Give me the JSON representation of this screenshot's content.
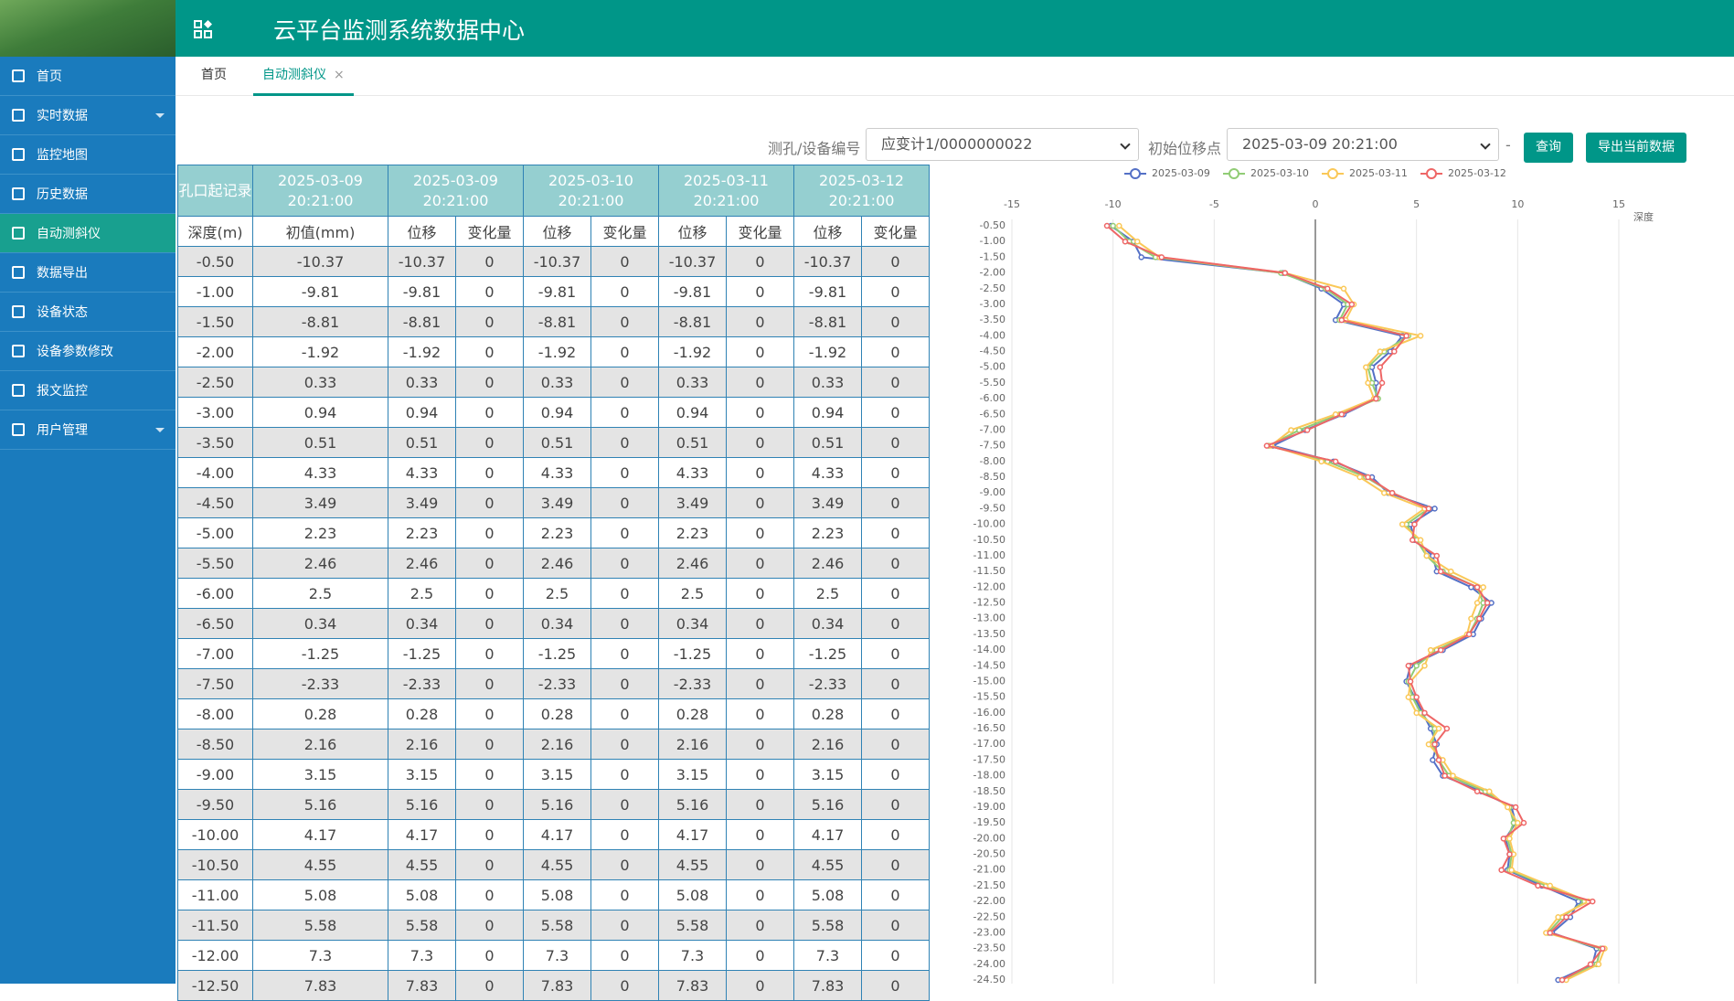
{
  "header": {
    "title": "云平台监测系统数据中心"
  },
  "sidebar": {
    "items": [
      "首页",
      "实时数据",
      "监控地图",
      "历史数据",
      "自动测斜仪",
      "数据导出",
      "设备状态",
      "设备参数修改",
      "报文监控",
      "用户管理"
    ]
  },
  "tabs": {
    "items": [
      "首页",
      "自动测斜仪"
    ]
  },
  "filters": {
    "device_label": "测孔/设备编号",
    "device_value": "应变计1/0000000022",
    "start_label": "初始位移点",
    "start_value": "2025-03-09 20:21:00",
    "dash": "-",
    "query_button": "查询",
    "export_button": "导出当前数据"
  },
  "table": {
    "header_top": [
      "孔口起记录",
      "2025-03-09 20:21:00",
      "2025-03-09 20:21:00",
      "2025-03-10 20:21:00",
      "2025-03-11 20:21:00",
      "2025-03-12 20:21:00"
    ],
    "header_sub": [
      "深度(m)",
      "初值(mm)",
      "位移",
      "变化量",
      "位移",
      "变化量",
      "位移",
      "变化量",
      "位移",
      "变化量"
    ],
    "rows": [
      [
        "-0.50",
        "-10.37",
        "-10.37",
        "0",
        "-10.37",
        "0",
        "-10.37",
        "0",
        "-10.37",
        "0"
      ],
      [
        "-1.00",
        "-9.81",
        "-9.81",
        "0",
        "-9.81",
        "0",
        "-9.81",
        "0",
        "-9.81",
        "0"
      ],
      [
        "-1.50",
        "-8.81",
        "-8.81",
        "0",
        "-8.81",
        "0",
        "-8.81",
        "0",
        "-8.81",
        "0"
      ],
      [
        "-2.00",
        "-1.92",
        "-1.92",
        "0",
        "-1.92",
        "0",
        "-1.92",
        "0",
        "-1.92",
        "0"
      ],
      [
        "-2.50",
        "0.33",
        "0.33",
        "0",
        "0.33",
        "0",
        "0.33",
        "0",
        "0.33",
        "0"
      ],
      [
        "-3.00",
        "0.94",
        "0.94",
        "0",
        "0.94",
        "0",
        "0.94",
        "0",
        "0.94",
        "0"
      ],
      [
        "-3.50",
        "0.51",
        "0.51",
        "0",
        "0.51",
        "0",
        "0.51",
        "0",
        "0.51",
        "0"
      ],
      [
        "-4.00",
        "4.33",
        "4.33",
        "0",
        "4.33",
        "0",
        "4.33",
        "0",
        "4.33",
        "0"
      ],
      [
        "-4.50",
        "3.49",
        "3.49",
        "0",
        "3.49",
        "0",
        "3.49",
        "0",
        "3.49",
        "0"
      ],
      [
        "-5.00",
        "2.23",
        "2.23",
        "0",
        "2.23",
        "0",
        "2.23",
        "0",
        "2.23",
        "0"
      ],
      [
        "-5.50",
        "2.46",
        "2.46",
        "0",
        "2.46",
        "0",
        "2.46",
        "0",
        "2.46",
        "0"
      ],
      [
        "-6.00",
        "2.5",
        "2.5",
        "0",
        "2.5",
        "0",
        "2.5",
        "0",
        "2.5",
        "0"
      ],
      [
        "-6.50",
        "0.34",
        "0.34",
        "0",
        "0.34",
        "0",
        "0.34",
        "0",
        "0.34",
        "0"
      ],
      [
        "-7.00",
        "-1.25",
        "-1.25",
        "0",
        "-1.25",
        "0",
        "-1.25",
        "0",
        "-1.25",
        "0"
      ],
      [
        "-7.50",
        "-2.33",
        "-2.33",
        "0",
        "-2.33",
        "0",
        "-2.33",
        "0",
        "-2.33",
        "0"
      ],
      [
        "-8.00",
        "0.28",
        "0.28",
        "0",
        "0.28",
        "0",
        "0.28",
        "0",
        "0.28",
        "0"
      ],
      [
        "-8.50",
        "2.16",
        "2.16",
        "0",
        "2.16",
        "0",
        "2.16",
        "0",
        "2.16",
        "0"
      ],
      [
        "-9.00",
        "3.15",
        "3.15",
        "0",
        "3.15",
        "0",
        "3.15",
        "0",
        "3.15",
        "0"
      ],
      [
        "-9.50",
        "5.16",
        "5.16",
        "0",
        "5.16",
        "0",
        "5.16",
        "0",
        "5.16",
        "0"
      ],
      [
        "-10.00",
        "4.17",
        "4.17",
        "0",
        "4.17",
        "0",
        "4.17",
        "0",
        "4.17",
        "0"
      ],
      [
        "-10.50",
        "4.55",
        "4.55",
        "0",
        "4.55",
        "0",
        "4.55",
        "0",
        "4.55",
        "0"
      ],
      [
        "-11.00",
        "5.08",
        "5.08",
        "0",
        "5.08",
        "0",
        "5.08",
        "0",
        "5.08",
        "0"
      ],
      [
        "-11.50",
        "5.58",
        "5.58",
        "0",
        "5.58",
        "0",
        "5.58",
        "0",
        "5.58",
        "0"
      ],
      [
        "-12.00",
        "7.3",
        "7.3",
        "0",
        "7.3",
        "0",
        "7.3",
        "0",
        "7.3",
        "0"
      ],
      [
        "-12.50",
        "7.83",
        "7.83",
        "0",
        "7.83",
        "0",
        "7.83",
        "0",
        "7.83",
        "0"
      ]
    ]
  },
  "chart_data": {
    "type": "line",
    "y_label": "深度",
    "categories": [
      "-0.50",
      "-1.00",
      "-1.50",
      "-2.00",
      "-2.50",
      "-3.00",
      "-3.50",
      "-4.00",
      "-4.50",
      "-5.00",
      "-5.50",
      "-6.00",
      "-6.50",
      "-7.00",
      "-7.50",
      "-8.00",
      "-8.50",
      "-9.00",
      "-9.50",
      "-10.00",
      "-10.50",
      "-11.00",
      "-11.50",
      "-12.00",
      "-12.50",
      "-13.00",
      "-13.50",
      "-14.00",
      "-14.50",
      "-15.00",
      "-15.50",
      "-16.00",
      "-16.50",
      "-17.00",
      "-17.50",
      "-18.00",
      "-18.50",
      "-19.00",
      "-19.50",
      "-20.00",
      "-20.50",
      "-21.00",
      "-21.50",
      "-22.00",
      "-22.50",
      "-23.00",
      "-23.50",
      "-24.00",
      "-24.50"
    ],
    "xlim": [
      -15,
      15
    ],
    "xticks": [
      -15,
      -10,
      -5,
      0,
      5,
      10,
      15
    ],
    "grid": true,
    "legend": "top",
    "series": [
      {
        "name": "2025-03-09",
        "color": "#5470c6",
        "values": [
          -10.1,
          -9.0,
          -8.6,
          -1.6,
          0.3,
          1.4,
          1.0,
          4.3,
          3.7,
          2.8,
          3.0,
          3.0,
          1.4,
          -0.5,
          -2.1,
          0.9,
          2.8,
          3.6,
          5.9,
          4.7,
          4.9,
          5.8,
          6.0,
          7.7,
          8.7,
          8.2,
          7.8,
          6.3,
          4.7,
          4.5,
          4.9,
          5.3,
          5.7,
          6.0,
          5.8,
          6.3,
          8.2,
          9.7,
          9.9,
          9.4,
          9.6,
          9.5,
          11.2,
          13.0,
          12.6,
          11.7,
          13.9,
          13.7,
          12.0
        ]
      },
      {
        "name": "2025-03-10",
        "color": "#91cc75",
        "values": [
          -10.0,
          -9.2,
          -7.9,
          -1.7,
          0.5,
          1.6,
          1.2,
          4.6,
          3.4,
          2.6,
          2.8,
          3.1,
          1.2,
          -0.8,
          -2.3,
          0.6,
          2.5,
          3.8,
          5.6,
          4.5,
          5.0,
          5.5,
          6.3,
          8.0,
          8.3,
          8.0,
          7.6,
          6.0,
          5.0,
          4.6,
          4.8,
          5.2,
          5.9,
          5.8,
          6.1,
          6.6,
          8.4,
          9.6,
          9.8,
          9.5,
          9.7,
          9.6,
          11.4,
          13.3,
          12.2,
          11.5,
          14.1,
          13.9,
          12.2
        ]
      },
      {
        "name": "2025-03-11",
        "color": "#fac858",
        "values": [
          -9.7,
          -8.8,
          -7.7,
          -1.5,
          1.4,
          1.9,
          1.5,
          5.2,
          3.2,
          2.5,
          2.6,
          2.9,
          1.0,
          -1.2,
          -2.2,
          0.3,
          2.2,
          3.4,
          5.4,
          4.3,
          5.2,
          5.5,
          6.7,
          8.3,
          8.0,
          7.7,
          7.5,
          5.7,
          5.4,
          4.7,
          4.6,
          5.0,
          6.1,
          5.6,
          6.3,
          6.8,
          8.6,
          9.5,
          10.0,
          9.6,
          9.8,
          9.7,
          11.6,
          13.5,
          12.0,
          11.4,
          14.3,
          14.0,
          12.4
        ]
      },
      {
        "name": "2025-03-12",
        "color": "#ee6666",
        "values": [
          -10.3,
          -9.4,
          -7.6,
          -1.5,
          0.6,
          1.8,
          1.3,
          4.5,
          3.9,
          3.2,
          3.3,
          3.0,
          1.3,
          -0.4,
          -2.4,
          1.0,
          2.6,
          3.8,
          5.6,
          4.9,
          4.8,
          6.0,
          6.2,
          8.0,
          8.5,
          8.1,
          7.6,
          6.2,
          4.6,
          4.7,
          5.0,
          5.4,
          6.5,
          5.9,
          6.1,
          6.4,
          8.0,
          9.9,
          10.3,
          9.3,
          9.6,
          9.2,
          11.0,
          13.7,
          12.4,
          11.6,
          14.2,
          13.6,
          12.2
        ]
      }
    ]
  }
}
